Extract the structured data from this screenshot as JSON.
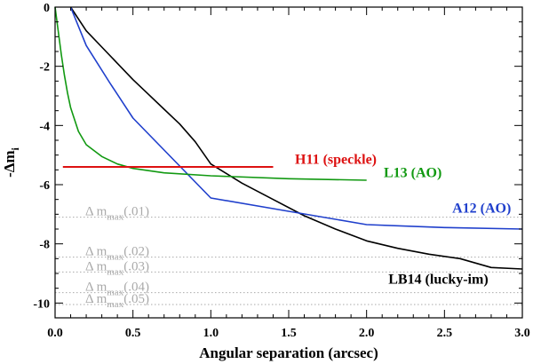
{
  "chart_data": {
    "type": "line",
    "title": "",
    "xlabel": "Angular separation (arcsec)",
    "ylabel_main": "-Δm",
    "ylabel_sub": "i",
    "xlim": [
      0.0,
      3.0
    ],
    "ylim": [
      -10.5,
      0.0
    ],
    "xticks": [
      0.0,
      0.5,
      1.0,
      1.5,
      2.0,
      2.5,
      3.0
    ],
    "xtick_labels": [
      "0.0",
      "0.5",
      "1.0",
      "1.5",
      "2.0",
      "2.5",
      "3.0"
    ],
    "yticks": [
      0,
      -2,
      -4,
      -6,
      -8,
      -10
    ],
    "ytick_labels": [
      "0",
      "-2",
      "-4",
      "-6",
      "-8",
      "-10"
    ],
    "series": [
      {
        "name": "LB14 (lucky-im)",
        "label": "LB14 (lucky-im)",
        "color": "#000000",
        "x": [
          0.1,
          0.2,
          0.3,
          0.4,
          0.5,
          0.6,
          0.7,
          0.8,
          0.9,
          1.0,
          1.2,
          1.4,
          1.6,
          1.8,
          2.0,
          2.2,
          2.4,
          2.6,
          2.8,
          3.0
        ],
        "y": [
          0.0,
          -0.8,
          -1.35,
          -1.9,
          -2.45,
          -2.95,
          -3.45,
          -3.95,
          -4.55,
          -5.3,
          -5.95,
          -6.5,
          -7.05,
          -7.5,
          -7.9,
          -8.15,
          -8.35,
          -8.5,
          -8.8,
          -8.85
        ]
      },
      {
        "name": "A12 (AO)",
        "label": "A12 (AO)",
        "color": "#1f3fcc",
        "x": [
          0.1,
          0.2,
          0.35,
          0.5,
          0.75,
          1.0,
          1.5,
          2.0,
          2.5,
          3.0
        ],
        "y": [
          0.0,
          -1.3,
          -2.55,
          -3.75,
          -5.1,
          -6.45,
          -6.9,
          -7.35,
          -7.45,
          -7.5
        ]
      },
      {
        "name": "L13 (AO)",
        "label": "L13 (AO)",
        "color": "#119911",
        "x": [
          0.0,
          0.02,
          0.04,
          0.06,
          0.08,
          0.1,
          0.15,
          0.2,
          0.3,
          0.4,
          0.5,
          0.7,
          1.0,
          1.5,
          2.0
        ],
        "y": [
          0.0,
          -0.8,
          -1.6,
          -2.3,
          -2.9,
          -3.4,
          -4.2,
          -4.65,
          -5.05,
          -5.3,
          -5.45,
          -5.6,
          -5.7,
          -5.8,
          -5.85
        ]
      },
      {
        "name": "H11 (speckle)",
        "label": "H11 (speckle)",
        "color": "#dd1111",
        "x": [
          0.05,
          1.4
        ],
        "y": [
          -5.4,
          -5.4
        ]
      }
    ],
    "reference_lines": [
      {
        "main": "Δ m",
        "sub": "max",
        "suffix": "(.01)",
        "y": -7.1
      },
      {
        "main": "Δ m",
        "sub": "max",
        "suffix": "(.02)",
        "y": -8.45
      },
      {
        "main": "Δ m",
        "sub": "max",
        "suffix": "(.03)",
        "y": -8.95
      },
      {
        "main": "Δ m",
        "sub": "max",
        "suffix": "(.04)",
        "y": -9.65
      },
      {
        "main": "Δ m",
        "sub": "max",
        "suffix": "(.05)",
        "y": -10.05
      }
    ],
    "reference_color": "#aaaaaa"
  }
}
